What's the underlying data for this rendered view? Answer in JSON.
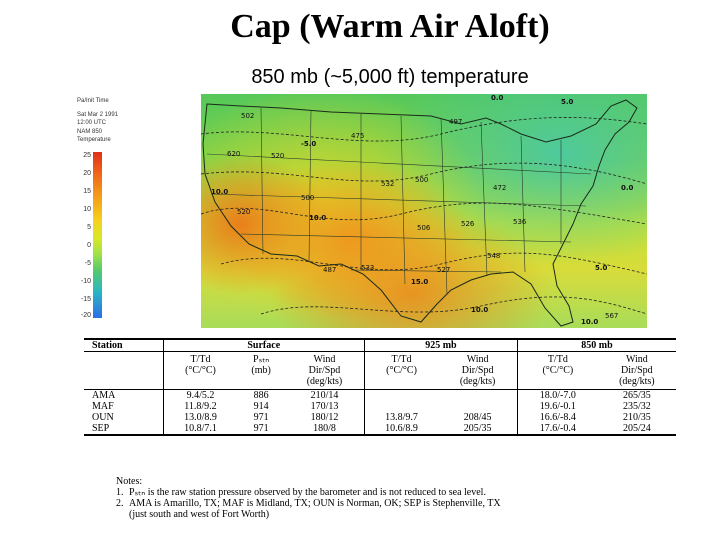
{
  "slide": {
    "title": "Cap (Warm Air Aloft)",
    "subtitle": "850 mb (~5,000 ft) temperature"
  },
  "map": {
    "legend_lines": [
      "Pa/Init Time",
      "Sat Mar 2 1991",
      "12:00 UTC",
      "NAM 850",
      "Temperature"
    ],
    "colorbar_ticks": [
      "25",
      "20",
      "15",
      "10",
      "5",
      "0",
      "-5",
      "-10",
      "-15",
      "-20"
    ],
    "station_labels": [
      "502",
      "620",
      "520",
      "520",
      "500",
      "487",
      "533",
      "526",
      "472",
      "536",
      "548",
      "527",
      "567",
      "506",
      "532",
      "497",
      "475",
      "500",
      "0.0",
      "-5.0",
      "5.0",
      "10.0",
      "10.0",
      "15.0",
      "10.0",
      "5.0",
      "0.0",
      "10.0"
    ]
  },
  "table": {
    "group_headers": [
      "Station",
      "Surface",
      "925 mb",
      "850 mb"
    ],
    "sub_headers": [
      "T/Td\n(°C/°C)",
      "Pₛₜₙ\n(mb)",
      "Wind\nDir/Spd\n(deg/kts)",
      "T/Td\n(°C/°C)",
      "Wind\nDir/Spd\n(deg/kts)",
      "T/Td\n(°C/°C)",
      "Wind\nDir/Spd\n(deg/kts)"
    ],
    "rows": [
      [
        "AMA",
        "9.4/5.2",
        "886",
        "210/14",
        "",
        "",
        "18.0/-7.0",
        "265/35"
      ],
      [
        "MAF",
        "11.8/9.2",
        "914",
        "170/13",
        "",
        "",
        "19.6/-0.1",
        "235/32"
      ],
      [
        "OUN",
        "13.0/8.9",
        "971",
        "180/12",
        "13.8/9.7",
        "208/45",
        "16.6/-8.4",
        "210/35"
      ],
      [
        "SEP",
        "10.8/7.1",
        "971",
        "180/8",
        "10.6/8.9",
        "205/35",
        "17.6/-0.4",
        "205/24"
      ]
    ]
  },
  "notes": {
    "heading": "Notes:",
    "items": [
      {
        "num": "1.",
        "text": "Pₛₜₙ is the raw station pressure observed by the barometer and is not reduced to sea level."
      },
      {
        "num": "2.",
        "text": "AMA is Amarillo, TX; MAF is Midland, TX; OUN is Norman, OK; SEP is Stephenville, TX"
      },
      {
        "num": "",
        "text": "(just south and west of Fort Worth)"
      }
    ]
  }
}
